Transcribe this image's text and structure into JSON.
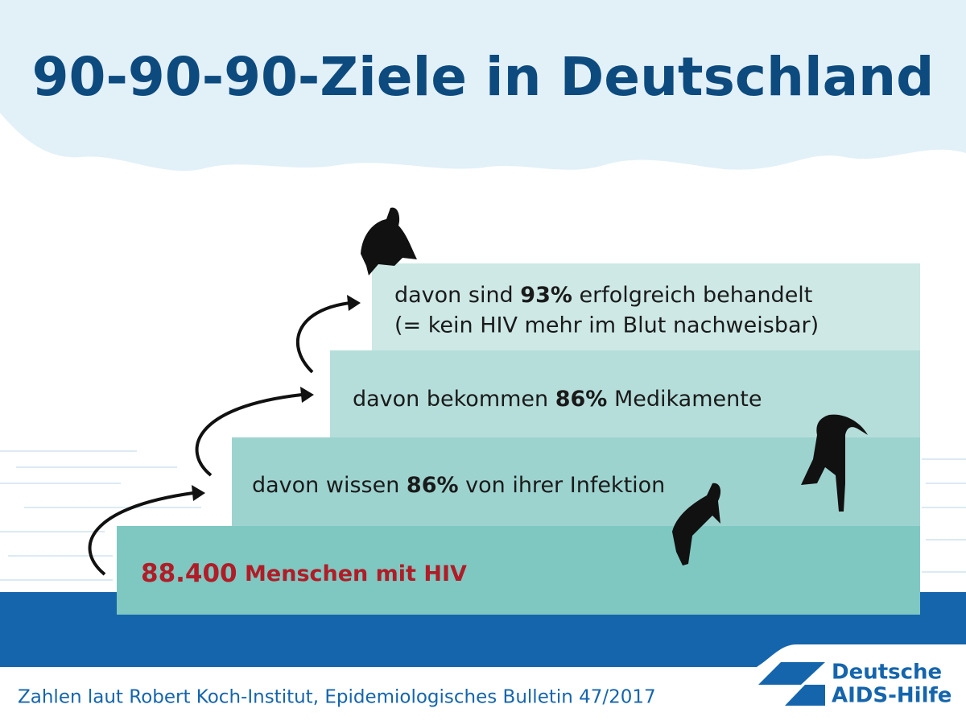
{
  "header": {
    "title": "90-90-90-Ziele in Deutschland"
  },
  "steps": [
    {
      "bold": "88.400",
      "text": " Menschen mit HIV"
    },
    {
      "text": "davon wissen ",
      "bold": "86%",
      "suffix": " von ihrer Infektion"
    },
    {
      "text": "davon bekommen ",
      "bold": "86%",
      "suffix": " Medikamente"
    },
    {
      "text": "davon sind ",
      "bold": "93%",
      "suffix": " erfolgreich behandelt",
      "line2": "(= kein HIV mehr im Blut nachweisbar)"
    }
  ],
  "footer": {
    "source": "Zahlen laut Robert Koch-Institut, Epidemiologisches Bulletin 47/2017"
  },
  "logo": {
    "line1": "Deutsche",
    "line2": "AIDS-Hilfe"
  }
}
